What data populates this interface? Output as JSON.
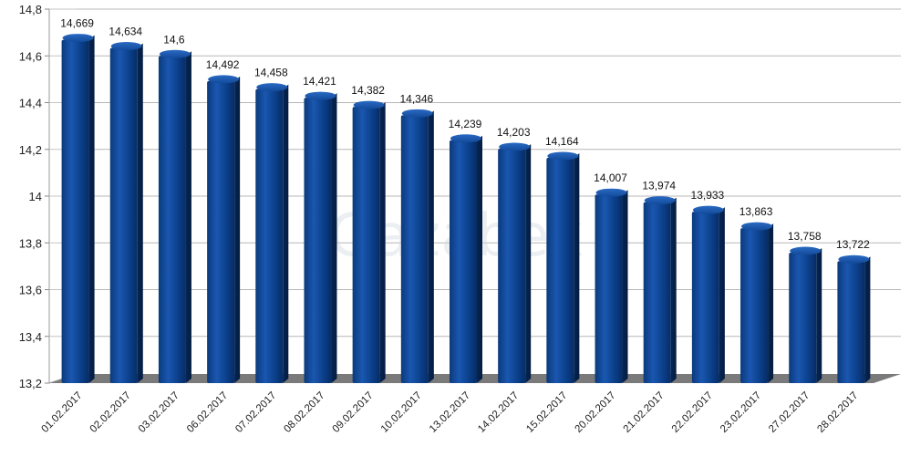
{
  "chart_data": {
    "type": "bar",
    "title": "",
    "xlabel": "",
    "ylabel": "",
    "ylim": [
      13.2,
      14.8
    ],
    "ytick_step": 0.2,
    "grid": true,
    "bar_color": "#0a3d86",
    "categories": [
      "01.02.2017",
      "02.02.2017",
      "03.02.2017",
      "06.02.2017",
      "07.02.2017",
      "08.02.2017",
      "09.02.2017",
      "10.02.2017",
      "13.02.2017",
      "14.02.2017",
      "15.02.2017",
      "20.02.2017",
      "21.02.2017",
      "22.02.2017",
      "23.02.2017",
      "27.02.2017",
      "28.02.2017"
    ],
    "values": [
      14.669,
      14.634,
      14.6,
      14.492,
      14.458,
      14.421,
      14.382,
      14.346,
      14.239,
      14.203,
      14.164,
      14.007,
      13.974,
      13.933,
      13.863,
      13.758,
      13.722
    ],
    "data_labels": [
      "14,669",
      "14,634",
      "14,6",
      "14,492",
      "14,458",
      "14,421",
      "14,382",
      "14,346",
      "14,239",
      "14,203",
      "14,164",
      "14,007",
      "13,974",
      "13,933",
      "13,863",
      "13,758",
      "13,722"
    ],
    "ytick_labels": [
      "13,2",
      "13,4",
      "13,6",
      "13,8",
      "14",
      "14,2",
      "14,4",
      "14,6",
      "14,8"
    ]
  },
  "watermark": "Gazabek"
}
